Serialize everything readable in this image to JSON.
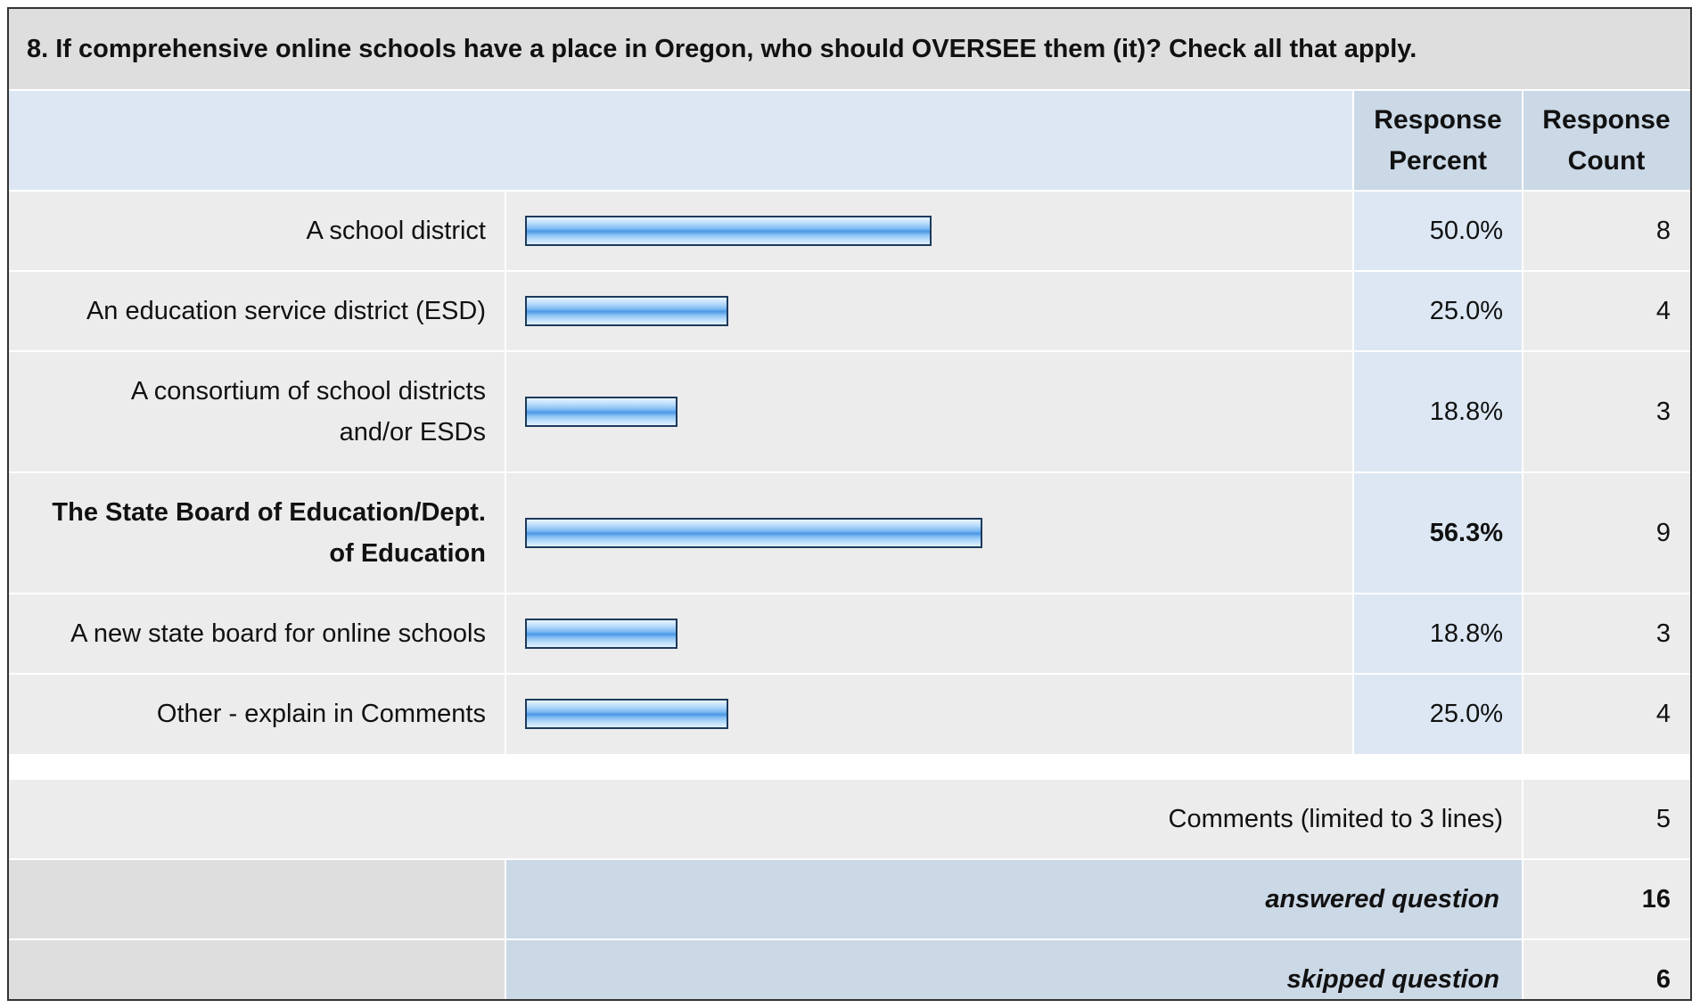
{
  "question": {
    "title": "8. If comprehensive online schools have a place in Oregon, who should OVERSEE them (it)? Check all that apply."
  },
  "headers": {
    "percent": [
      "Response",
      "Percent"
    ],
    "count": [
      "Response",
      "Count"
    ]
  },
  "chart_data": {
    "type": "bar",
    "orientation": "horizontal",
    "categories": [
      [
        "A school district"
      ],
      [
        "An education service district (ESD)"
      ],
      [
        "A consortium of school districts",
        "and/or ESDs"
      ],
      [
        "The State Board of Education/Dept.",
        "of Education"
      ],
      [
        "A new state board for online schools"
      ],
      [
        "Other - explain in Comments"
      ]
    ],
    "values": [
      50.0,
      25.0,
      18.8,
      56.3,
      18.8,
      25.0
    ],
    "percent_labels": [
      "50.0%",
      "25.0%",
      "18.8%",
      "56.3%",
      "18.8%",
      "25.0%"
    ],
    "counts": [
      "8",
      "4",
      "3",
      "9",
      "3",
      "4"
    ],
    "highlight_index": 3,
    "xlim": [
      0,
      100
    ],
    "bar_color": "#4a98e6",
    "title": "",
    "xlabel": "",
    "ylabel": ""
  },
  "comments": {
    "label": "Comments (limited to 3 lines)",
    "count": "5"
  },
  "footer": {
    "answered_label": "answered question",
    "answered_value": "16",
    "skipped_label": "skipped question",
    "skipped_value": "6"
  }
}
